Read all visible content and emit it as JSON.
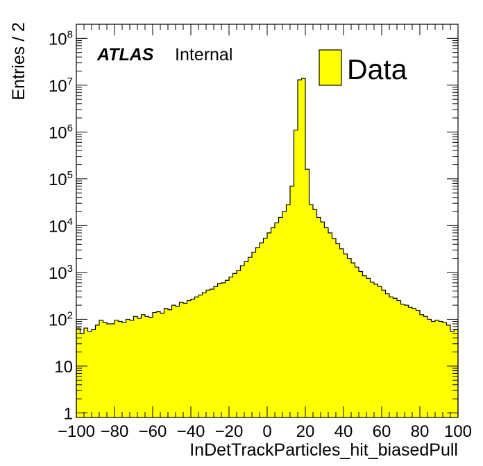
{
  "chart_data": {
    "type": "bar",
    "subtype": "histogram",
    "log_y": true,
    "xlabel": "InDetTrackParticles_hit_biasedPull",
    "ylabel": "Entries / 2",
    "xlim": [
      -100,
      100
    ],
    "ylim": [
      0.8,
      200000000
    ],
    "bin_width": 2,
    "x_ticks": [
      -100,
      -80,
      -60,
      -40,
      -20,
      0,
      20,
      40,
      60,
      80,
      100
    ],
    "x_tick_labels": [
      "−100",
      "−80",
      "−60",
      "−40",
      "−20",
      "0",
      "20",
      "40",
      "60",
      "80",
      "100"
    ],
    "y_ticks": [
      {
        "value": 1,
        "base": "1",
        "exp": ""
      },
      {
        "value": 10,
        "base": "10",
        "exp": ""
      },
      {
        "value": 100,
        "base": "10",
        "exp": "2"
      },
      {
        "value": 1000,
        "base": "10",
        "exp": "3"
      },
      {
        "value": 10000,
        "base": "10",
        "exp": "4"
      },
      {
        "value": 100000,
        "base": "10",
        "exp": "5"
      },
      {
        "value": 1000000,
        "base": "10",
        "exp": "6"
      },
      {
        "value": 10000000,
        "base": "10",
        "exp": "7"
      },
      {
        "value": 100000000,
        "base": "10",
        "exp": "8"
      }
    ],
    "annotation": {
      "experiment": "ATLAS",
      "status": "Internal"
    },
    "legend": {
      "placement": "top-right",
      "entries": [
        "Data"
      ]
    },
    "series": [
      {
        "name": "Data",
        "color": "#ffff00",
        "edge_color": "#000000",
        "bin_edges_start": -100,
        "values": [
          65,
          50,
          65,
          55,
          60,
          75,
          95,
          85,
          80,
          80,
          95,
          90,
          85,
          100,
          95,
          115,
          105,
          125,
          115,
          110,
          140,
          145,
          135,
          170,
          160,
          200,
          190,
          230,
          220,
          250,
          270,
          300,
          330,
          370,
          420,
          440,
          500,
          580,
          600,
          680,
          800,
          950,
          1100,
          1400,
          1700,
          2100,
          2700,
          3400,
          4300,
          5400,
          7000,
          9000,
          11500,
          15000,
          20000,
          28000,
          70000,
          1100000,
          13000000,
          14000000,
          160000,
          28000,
          22000,
          15000,
          12000,
          9000,
          7000,
          5300,
          4100,
          3200,
          2500,
          2000,
          1600,
          1300,
          1050,
          850,
          750,
          620,
          560,
          500,
          420,
          350,
          300,
          280,
          250,
          210,
          200,
          180,
          170,
          155,
          125,
          115,
          100,
          90,
          95,
          90,
          85,
          75,
          55,
          60
        ]
      }
    ]
  }
}
